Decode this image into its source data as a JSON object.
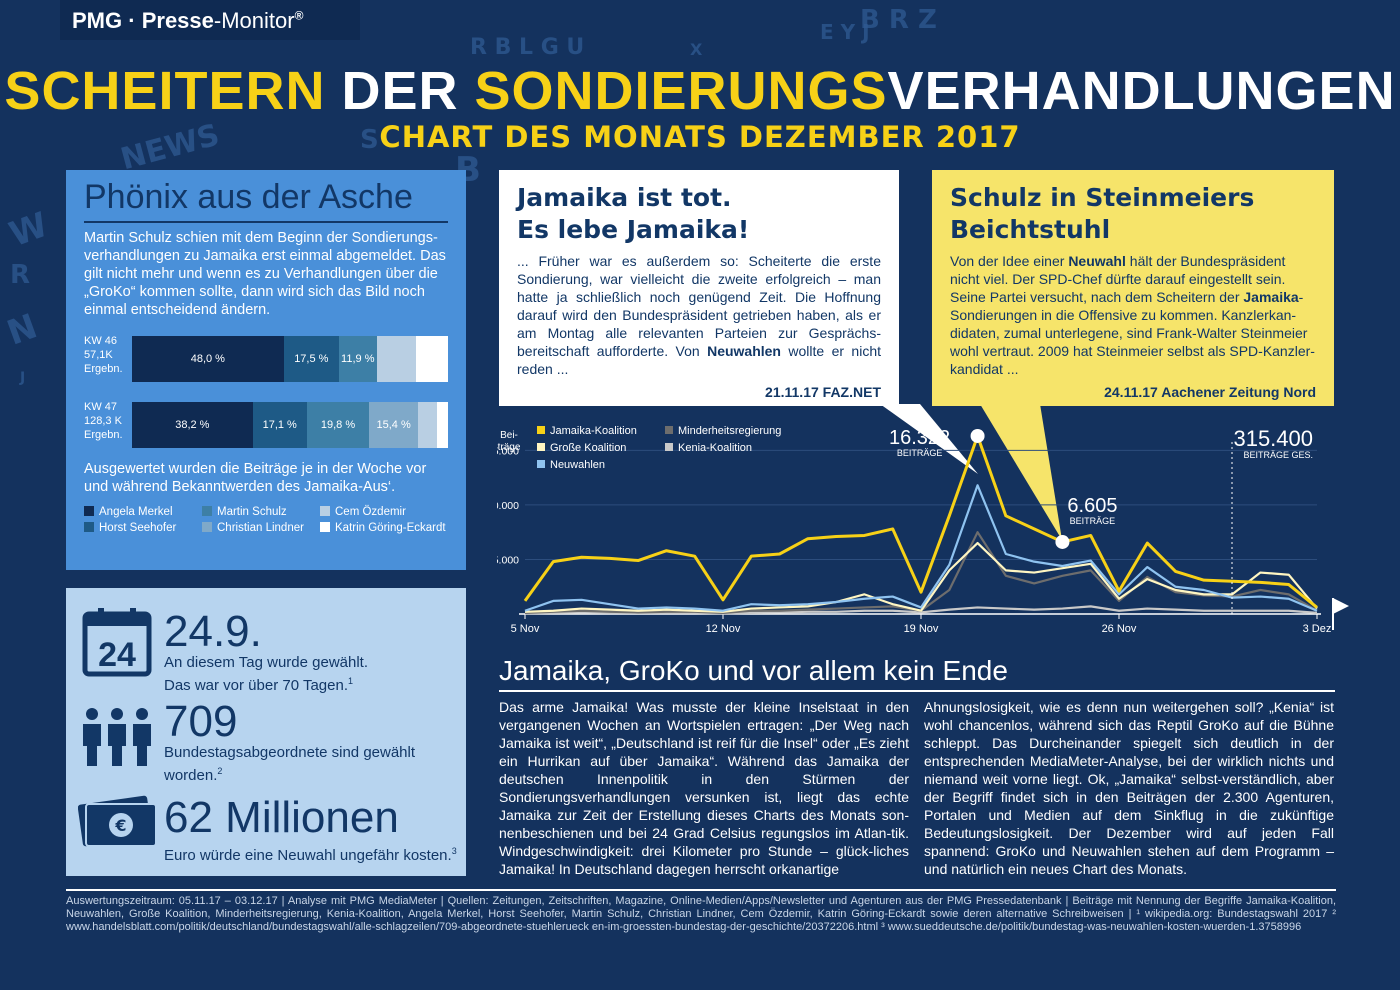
{
  "logo": {
    "brand": "PMG",
    "dot": "·",
    "name_bold": "Presse",
    "name_rest": "-Monitor",
    "reg": "®"
  },
  "title": {
    "part1": "SCHEITERN",
    "part2": "DER",
    "part3": "SONDIERUNGS",
    "part4": "VERHANDLUNGEN"
  },
  "subtitle": "CHART DES MONATS DEZEMBER 2017",
  "phoenix": {
    "heading": "Phönix aus der Asche",
    "intro": "Martin Schulz schien mit dem Beginn der Sondierungs-verhandlungen zu Jamaika erst einmal abgemeldet. Das gilt nicht mehr und wenn es zu Verhandlungen über die „GroKo“ kommen sollte, dann wird sich das Bild noch einmal entscheidend ändern.",
    "rows": [
      {
        "week": "KW 46",
        "count": "57,1K",
        "unit": "Ergebn.",
        "segments": [
          {
            "person": "Angela Merkel",
            "value": 48.0,
            "label": "48,0 %"
          },
          {
            "person": "Horst Seehofer",
            "value": 17.5,
            "label": "17,5 %"
          },
          {
            "person": "Martin Schulz",
            "value": 11.9,
            "label": "11,9 %"
          },
          {
            "person": "Christian Lindner",
            "value": 0,
            "label": ""
          },
          {
            "person": "Cem Özdemir",
            "value": 12.6,
            "label": ""
          },
          {
            "person": "Katrin Göring-Eckardt",
            "value": 10.0,
            "label": ""
          }
        ]
      },
      {
        "week": "KW 47",
        "count": "128,3 K",
        "unit": "Ergebn.",
        "segments": [
          {
            "person": "Angela Merkel",
            "value": 38.2,
            "label": "38,2 %"
          },
          {
            "person": "Horst Seehofer",
            "value": 17.1,
            "label": "17,1 %"
          },
          {
            "person": "Martin Schulz",
            "value": 19.8,
            "label": "19,8 %"
          },
          {
            "person": "Christian Lindner",
            "value": 15.4,
            "label": "15,4 %"
          },
          {
            "person": "Cem Özdemir",
            "value": 6.0,
            "label": ""
          },
          {
            "person": "Katrin Göring-Eckardt",
            "value": 3.5,
            "label": ""
          }
        ]
      }
    ],
    "note": "Ausgewertet wurden die Beiträge je in der Woche vor und während Bekanntwerden des Jamaika-Aus‘.",
    "legend": [
      {
        "name": "Angela Merkel",
        "color": "#0f2a52"
      },
      {
        "name": "Martin Schulz",
        "color": "#3d7fa6"
      },
      {
        "name": "Cem Özdemir",
        "color": "#b9cfe3"
      },
      {
        "name": "Horst Seehofer",
        "color": "#1e5a86"
      },
      {
        "name": "Christian Lindner",
        "color": "#7fa9c9"
      },
      {
        "name": "Katrin Göring-Eckardt",
        "color": "#ffffff"
      }
    ]
  },
  "facts": [
    {
      "icon": "calendar-icon",
      "icon_text": "24",
      "big": "24.9.",
      "line1": "An diesem Tag wurde gewählt.",
      "line2": "Das war vor über 70 Tagen.",
      "sup": "1"
    },
    {
      "icon": "people-icon",
      "big": "709",
      "line1": "Bundestagsabgeordnete sind gewählt",
      "line2": "worden.",
      "sup": "2"
    },
    {
      "icon": "euro-banknote-icon",
      "icon_text": "€",
      "big": "62 Millionen",
      "line1": "Euro würde eine Neuwahl ungefähr kosten.",
      "line2": "",
      "sup": "3"
    }
  ],
  "bubble1": {
    "line1": "Jamaika ist tot.",
    "line2": "Es lebe Jamaika!",
    "text_a": "... Früher war es außerdem so: Scheiterte die erste Sondierung, war vielleicht die zweite erfolgreich – man hatte ja schließlich noch genügend Zeit. Die Hoffnung darauf wird den Bundespräsident getrieben haben, als er am Montag alle relevanten Parteien zur Gesprächs-bereitschaft aufforderte. Von ",
    "text_bold": "Neuwahlen",
    "text_b": " wollte er nicht reden ...",
    "source": "21.11.17  FAZ.NET"
  },
  "bubble2": {
    "line1": "Schulz in Steinmeiers",
    "line2": "Beichtstuhl",
    "text_a": "Von der Idee einer ",
    "text_bold1": "Neuwahl",
    "text_b": " hält der Bundespräsident nicht viel. Der SPD-Chef dürfte darauf eingestellt sein. Seine Partei versucht, nach dem Scheitern der ",
    "text_bold2": "Jamaika",
    "text_c": "-Sondierungen in die Offensive zu kommen. Kanzlerkan-didaten, zumal unterlegene, sind Frank-Walter Steinmeier wohl vertraut. 2009 hat Steinmeier selbst als SPD-Kanzler-kandidat ...",
    "source": "24.11.17  Aachener Zeitung Nord"
  },
  "chart_data": {
    "type": "line",
    "ylabel": "Bei-träge",
    "ylim": [
      0,
      16500
    ],
    "yticks": [
      5000,
      10000,
      15000
    ],
    "ytick_labels": [
      "5.000",
      "10.000",
      "15.000"
    ],
    "xtick_labels": [
      "5 Nov",
      "12 Nov",
      "19 Nov",
      "26 Nov",
      "3 Dez"
    ],
    "xtick_days": [
      0,
      7,
      14,
      21,
      28
    ],
    "x_days": [
      0,
      1,
      2,
      3,
      4,
      5,
      6,
      7,
      8,
      9,
      10,
      11,
      12,
      13,
      14,
      15,
      16,
      17,
      18,
      19,
      20,
      21,
      22,
      23,
      24,
      25,
      26,
      27,
      28
    ],
    "series": [
      {
        "name": "Jamaika-Koalition",
        "color": "#f7d117",
        "values": [
          1200,
          4800,
          5200,
          5100,
          4900,
          5800,
          5300,
          1300,
          5300,
          5500,
          6900,
          7100,
          7200,
          7800,
          2000,
          9000,
          16322,
          9000,
          7800,
          6605,
          7200,
          2100,
          6500,
          3900,
          3100,
          3000,
          2900,
          2700,
          600
        ]
      },
      {
        "name": "Große Koalition",
        "color": "#fff6c2",
        "values": [
          200,
          300,
          500,
          400,
          300,
          400,
          300,
          200,
          500,
          600,
          700,
          1100,
          1800,
          900,
          300,
          4000,
          6500,
          4000,
          3800,
          4200,
          4600,
          1400,
          3200,
          2200,
          1800,
          1800,
          3800,
          3600,
          500
        ]
      },
      {
        "name": "Neuwahlen",
        "color": "#8fc3f0",
        "values": [
          300,
          1200,
          1300,
          900,
          500,
          600,
          500,
          300,
          900,
          800,
          900,
          1100,
          1400,
          1600,
          600,
          4500,
          11800,
          5500,
          4800,
          4400,
          4900,
          1800,
          4300,
          2500,
          2200,
          1500,
          1600,
          1400,
          300
        ]
      },
      {
        "name": "Minderheitsregierung",
        "color": "#6d6d6d",
        "values": [
          100,
          200,
          300,
          200,
          150,
          200,
          200,
          100,
          300,
          300,
          400,
          500,
          600,
          700,
          300,
          2200,
          7500,
          3500,
          2800,
          3500,
          4000,
          1200,
          3400,
          2000,
          1700,
          1600,
          2200,
          1800,
          300
        ]
      },
      {
        "name": "Kenia-Koalition",
        "color": "#c9c9c9",
        "values": [
          50,
          100,
          150,
          100,
          100,
          100,
          100,
          50,
          100,
          150,
          200,
          200,
          300,
          300,
          150,
          400,
          600,
          500,
          400,
          500,
          700,
          300,
          500,
          400,
          300,
          300,
          300,
          300,
          100
        ]
      }
    ],
    "annotations": [
      {
        "value_text": "16.322",
        "unit": "BEITRÄGE",
        "day": 16,
        "value": 16322
      },
      {
        "value_text": "6.605",
        "unit": "BEITRÄGE",
        "day": 19,
        "value": 6605
      },
      {
        "value_text": "315.400",
        "unit": "BEITRÄGE GES."
      }
    ]
  },
  "article": {
    "title": "Jamaika, GroKo und vor allem kein Ende",
    "col1": "Das arme Jamaika! Was musste der kleine Inselstaat in den vergangenen Wochen an Wortspielen ertragen: „Der Weg nach Jamaika ist weit“, „Deutschland ist reif für die Insel“ oder „Es zieht ein Hurrikan auf über Jamaika“. Während das Jamaika der deutschen Innenpolitik in den Stürmen der Sondierungsverhandlungen versunken ist, liegt das echte Jamaika zur Zeit der Erstellung dieses Charts des Monats son-nenbeschienen und bei 24 Grad Celsius regungslos im Atlan-tik. Windgeschwindigkeit: drei Kilometer pro Stunde – glück-liches Jamaika! In Deutschland dagegen herrscht orkanartige",
    "col2": "Ahnungslosigkeit, wie es denn nun weitergehen soll? „Kenia“ ist wohl chancenlos, während sich das Reptil GroKo auf die Bühne schleppt. Das Durcheinander spiegelt sich deutlich in der entsprechenden MediaMeter-Analyse, bei der wirklich nichts und niemand weit vorne liegt. Ok, „Jamaika“ selbst-verständlich, aber der Begriff findet sich in den Beiträgen der 2.300 Agenturen, Portalen und Medien auf dem Sinkflug in die zukünftige Bedeutungslosigkeit. Der Dezember wird auf jeden Fall spannend: GroKo und Neuwahlen stehen auf dem Programm – und natürlich ein neues Chart des Monats."
  },
  "footer": "Auswertungszeitraum: 05.11.17 – 03.12.17 | Analyse mit PMG MediaMeter | Quellen: Zeitungen, Zeitschriften, Magazine, Online-Medien/Apps/Newsletter und Agenturen aus der PMG Pressedatenbank | Beiträge mit Nennung der Begriffe Jamaika-Koalition, Neuwahlen, Große Koalition, Minderheitsregierung, Kenia-Koalition, Angela Merkel, Horst Seehofer, Martin Schulz, Christian Lindner, Cem Özdemir, Katrin Göring-Eckardt sowie deren alternative Schreibweisen | ¹ wikipedia.org: Bundestagswahl 2017  ² www.handelsblatt.com/politik/deutschland/bundestagswahl/alle-schlagzeilen/709-abgeordnete-stuehlerueck en-im-groessten-bundestag-der-geschichte/20372206.html ³ www.sueddeutsche.de/politik/bundestag-was-neuwahlen-kosten-wuerden-1.3758996"
}
